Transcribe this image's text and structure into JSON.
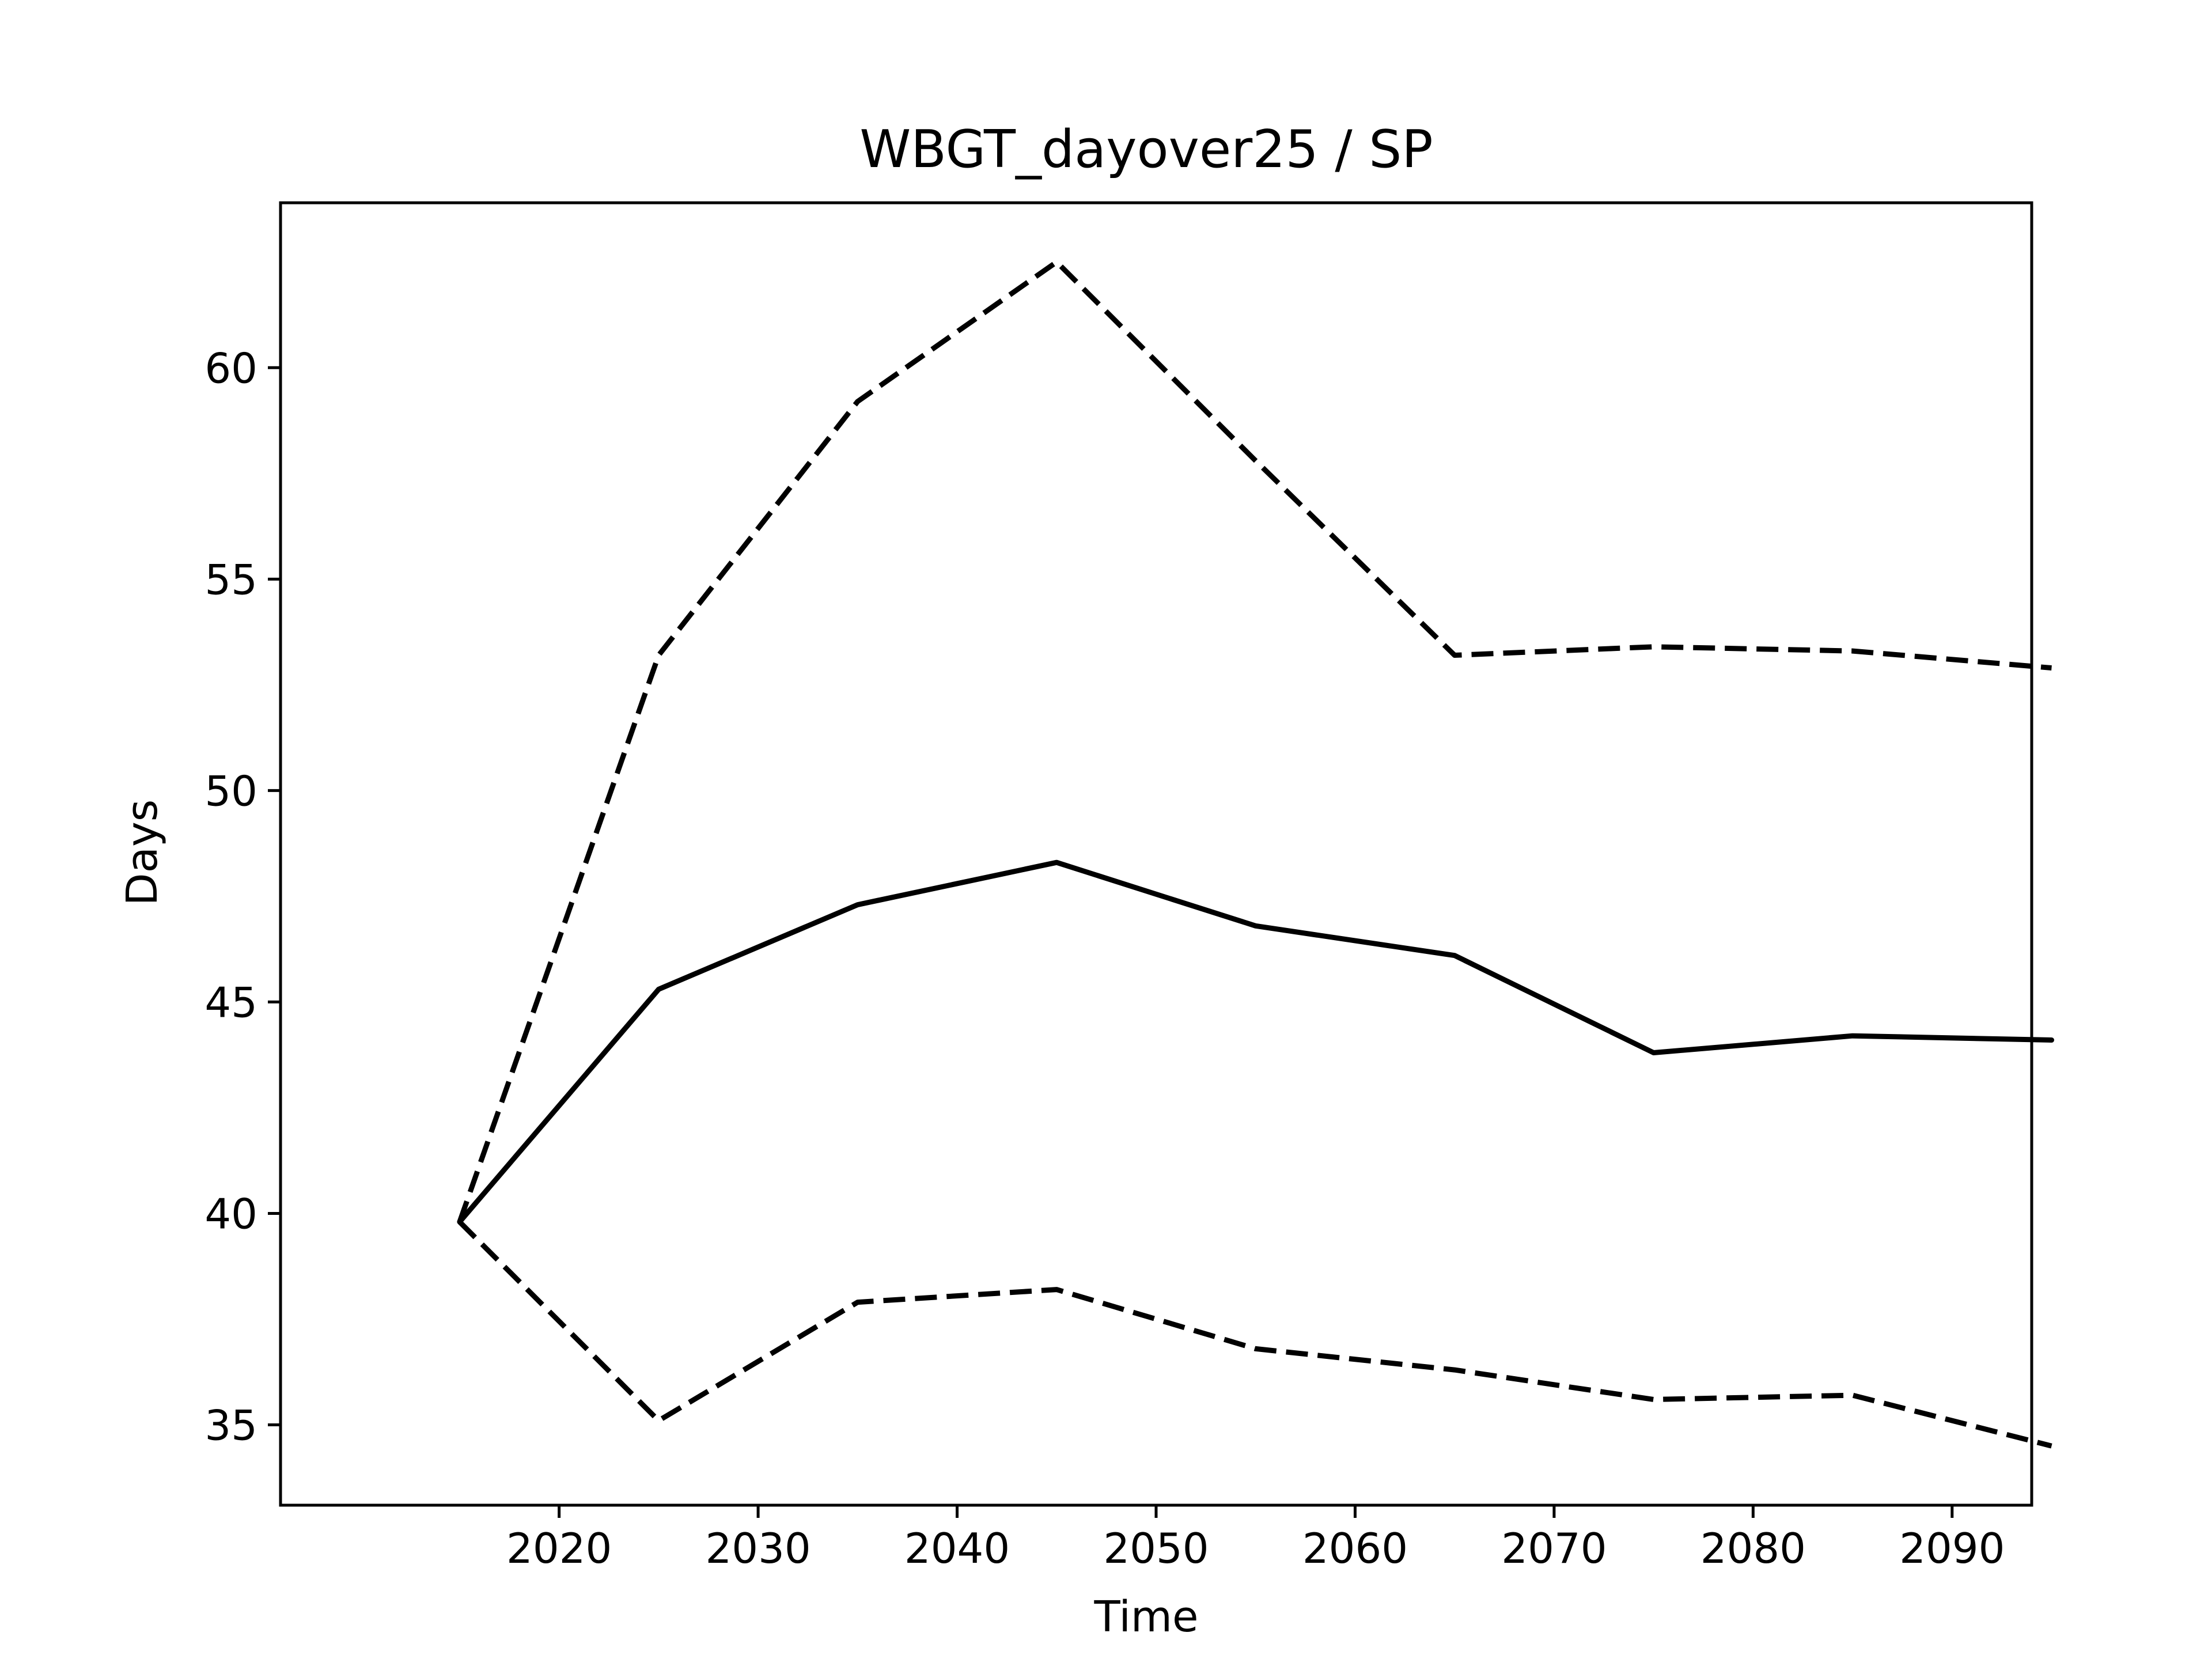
{
  "chart_data": {
    "type": "line",
    "title": "WBGT_dayover25 / SP",
    "xlabel": "Time",
    "ylabel": "Days",
    "x": [
      2015,
      2025,
      2035,
      2045,
      2055,
      2065,
      2075,
      2085,
      2095
    ],
    "xlim": [
      2006,
      2094
    ],
    "ylim": [
      33.1,
      63.9
    ],
    "xticks": [
      2020,
      2030,
      2040,
      2050,
      2060,
      2070,
      2080,
      2090
    ],
    "yticks": [
      35,
      40,
      45,
      50,
      55,
      60
    ],
    "grid": false,
    "legend": "none",
    "series": [
      {
        "style": "solid",
        "color": "#000000",
        "values": [
          39.8,
          45.3,
          47.3,
          48.3,
          46.8,
          46.1,
          43.8,
          44.2,
          44.1
        ]
      },
      {
        "style": "dashed",
        "color": "#000000",
        "values": [
          39.8,
          53.2,
          59.2,
          62.5,
          57.8,
          53.2,
          53.4,
          53.3,
          52.9
        ]
      },
      {
        "style": "dashed",
        "color": "#000000",
        "values": [
          39.8,
          35.1,
          37.9,
          38.2,
          36.8,
          36.3,
          35.6,
          35.7,
          34.5
        ]
      }
    ]
  }
}
